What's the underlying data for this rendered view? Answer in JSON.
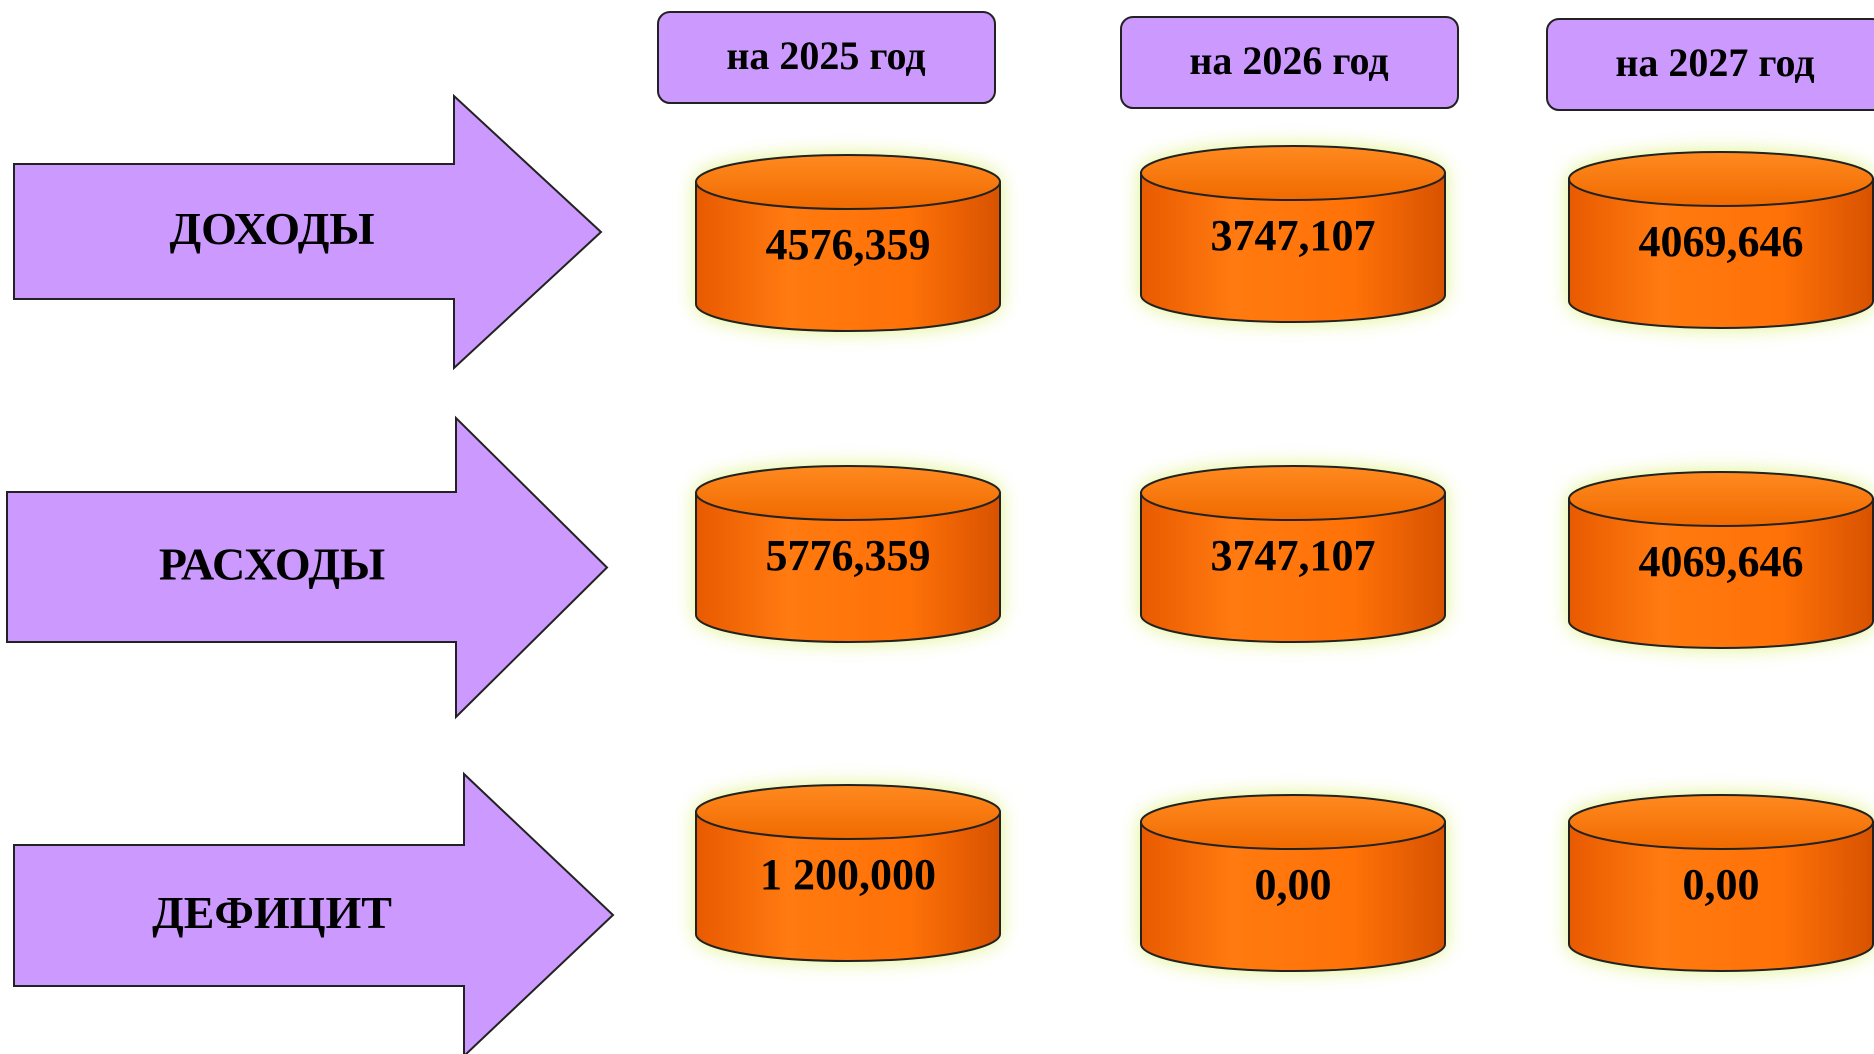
{
  "columns": [
    "на 2025 год",
    "на 2026 год",
    "на 2027 год"
  ],
  "rows": [
    {
      "label": "ДОХОДЫ",
      "values": [
        "4576,359",
        "3747,107",
        "4069,646"
      ]
    },
    {
      "label": "РАСХОДЫ",
      "values": [
        "5776,359",
        "3747,107",
        "4069,646"
      ]
    },
    {
      "label": "ДЕФИЦИТ",
      "values": [
        "1 200,000",
        "0,00",
        "0,00"
      ]
    }
  ]
}
